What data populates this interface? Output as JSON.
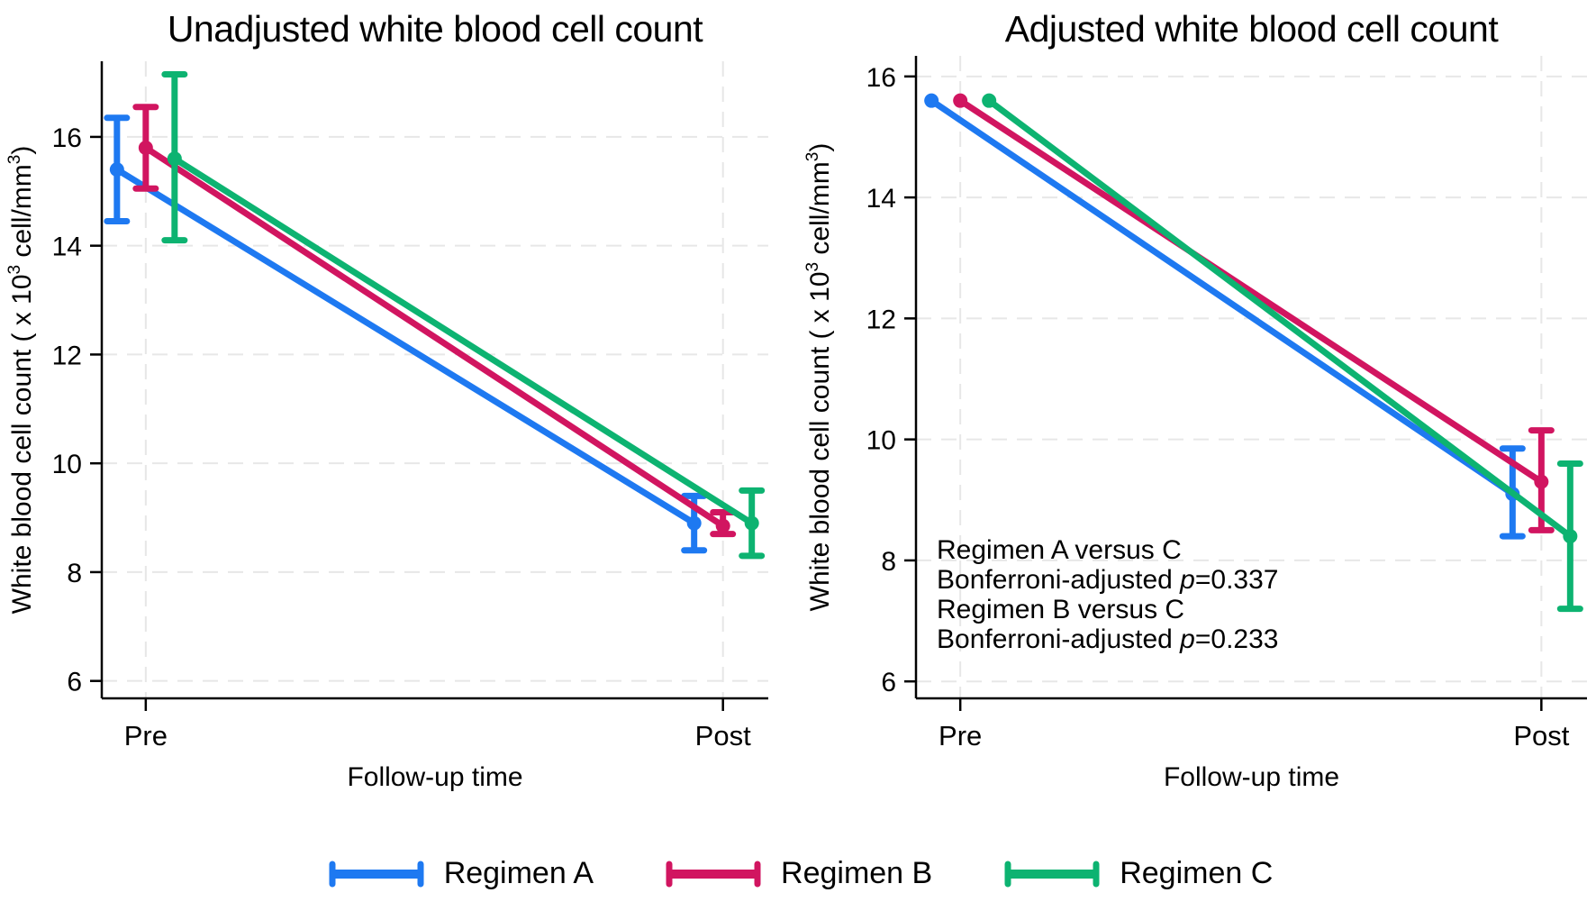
{
  "figure": {
    "background": "#ffffff",
    "axis_color": "#000000",
    "grid_color": "#e7e7e7"
  },
  "chart_data": [
    {
      "type": "line",
      "title": "Unadjusted white blood cell count",
      "xlabel": "Follow-up time",
      "ylabel_parts": [
        {
          "t": "White blood cell count ( x 10"
        },
        {
          "sup": "3"
        },
        {
          "t": " cell/mm"
        },
        {
          "sup": "3"
        },
        {
          "t": ")"
        }
      ],
      "x_categories": [
        "Pre",
        "Post"
      ],
      "yticks": [
        16,
        14,
        12,
        10,
        8,
        6
      ],
      "ylim": [
        5.68,
        17.39
      ],
      "grid": true,
      "series": [
        {
          "name": "Regimen A",
          "color": "#1e79f1",
          "points": [
            {
              "x": "Pre",
              "y": 15.4,
              "ci": [
                14.45,
                16.35
              ]
            },
            {
              "x": "Post",
              "y": 8.9,
              "ci": [
                8.4,
                9.4
              ]
            }
          ]
        },
        {
          "name": "Regimen B",
          "color": "#d11560",
          "points": [
            {
              "x": "Pre",
              "y": 15.8,
              "ci": [
                15.05,
                16.55
              ]
            },
            {
              "x": "Post",
              "y": 8.85,
              "ci": [
                8.7,
                9.1
              ]
            }
          ]
        },
        {
          "name": "Regimen C",
          "color": "#0db371",
          "points": [
            {
              "x": "Pre",
              "y": 15.6,
              "ci": [
                14.1,
                17.15
              ]
            },
            {
              "x": "Post",
              "y": 8.9,
              "ci": [
                8.3,
                9.5
              ]
            }
          ]
        }
      ]
    },
    {
      "type": "line",
      "title": "Adjusted white blood cell count",
      "xlabel": "Follow-up time",
      "ylabel_parts": [
        {
          "t": "White blood cell count ( x 10"
        },
        {
          "sup": "3"
        },
        {
          "t": " cell/mm"
        },
        {
          "sup": "3"
        },
        {
          "t": ")"
        }
      ],
      "x_categories": [
        "Pre",
        "Post"
      ],
      "yticks": [
        16,
        14,
        12,
        10,
        8,
        6
      ],
      "ylim": [
        5.72,
        16.34
      ],
      "grid": true,
      "series": [
        {
          "name": "Regimen A",
          "color": "#1e79f1",
          "points": [
            {
              "x": "Pre",
              "y": 15.6,
              "ci": null
            },
            {
              "x": "Post",
              "y": 9.1,
              "ci": [
                8.4,
                9.85
              ]
            }
          ]
        },
        {
          "name": "Regimen B",
          "color": "#d11560",
          "points": [
            {
              "x": "Pre",
              "y": 15.6,
              "ci": null
            },
            {
              "x": "Post",
              "y": 9.3,
              "ci": [
                8.5,
                10.15
              ]
            }
          ]
        },
        {
          "name": "Regimen C",
          "color": "#0db371",
          "points": [
            {
              "x": "Pre",
              "y": 15.6,
              "ci": null
            },
            {
              "x": "Post",
              "y": 8.4,
              "ci": [
                7.2,
                9.6
              ]
            }
          ]
        }
      ],
      "annotation": {
        "lines": [
          {
            "segments": [
              {
                "t": "Regimen A versus C"
              }
            ]
          },
          {
            "segments": [
              {
                "t": "Bonferroni-adjusted "
              },
              {
                "t": "p",
                "italic": true
              },
              {
                "t": "=0.337"
              }
            ]
          },
          {
            "segments": [
              {
                "t": "Regimen B versus C"
              }
            ]
          },
          {
            "segments": [
              {
                "t": "Bonferroni-adjusted "
              },
              {
                "t": "p",
                "italic": true
              },
              {
                "t": "=0.233"
              }
            ]
          }
        ]
      }
    }
  ],
  "legend": {
    "items": [
      {
        "label": "Regimen A",
        "color": "#1e79f1"
      },
      {
        "label": "Regimen B",
        "color": "#d11560"
      },
      {
        "label": "Regimen C",
        "color": "#0db371"
      }
    ]
  }
}
